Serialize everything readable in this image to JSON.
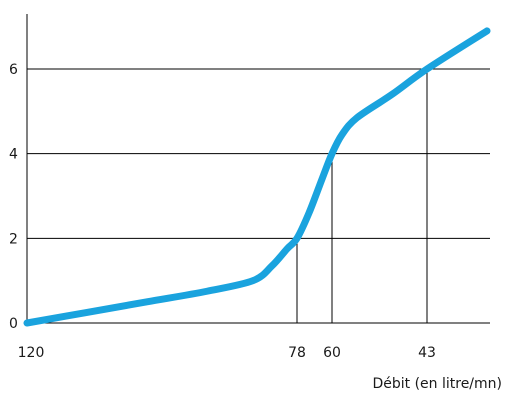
{
  "chart_data": {
    "type": "line",
    "title": "",
    "xlabel": "Débit (en litre/mn)",
    "ylabel": "",
    "x_tick_labels": [
      {
        "label": "120",
        "pos": 0
      },
      {
        "label": "78",
        "pos": 270
      },
      {
        "label": "60",
        "pos": 305
      },
      {
        "label": "43",
        "pos": 400
      }
    ],
    "x_range": [
      0,
      460
    ],
    "y_ticks": [
      0,
      2,
      4,
      6
    ],
    "ylim": [
      0,
      7.3
    ],
    "grid": "horizontal",
    "series": [
      {
        "color": "#1aa3de",
        "points": [
          [
            0,
            0.0
          ],
          [
            60,
            0.25
          ],
          [
            120,
            0.5
          ],
          [
            180,
            0.75
          ],
          [
            226,
            1.0
          ],
          [
            245,
            1.35
          ],
          [
            260,
            1.75
          ],
          [
            270,
            2.0
          ],
          [
            282,
            2.6
          ],
          [
            295,
            3.4
          ],
          [
            305,
            4.0
          ],
          [
            315,
            4.45
          ],
          [
            330,
            4.85
          ],
          [
            365,
            5.4
          ],
          [
            400,
            6.0
          ],
          [
            460,
            6.9
          ]
        ]
      }
    ],
    "droplines": [
      {
        "x": 270,
        "y": 2.0
      },
      {
        "x": 305,
        "y": 4.0
      },
      {
        "x": 400,
        "y": 6.0
      }
    ]
  }
}
